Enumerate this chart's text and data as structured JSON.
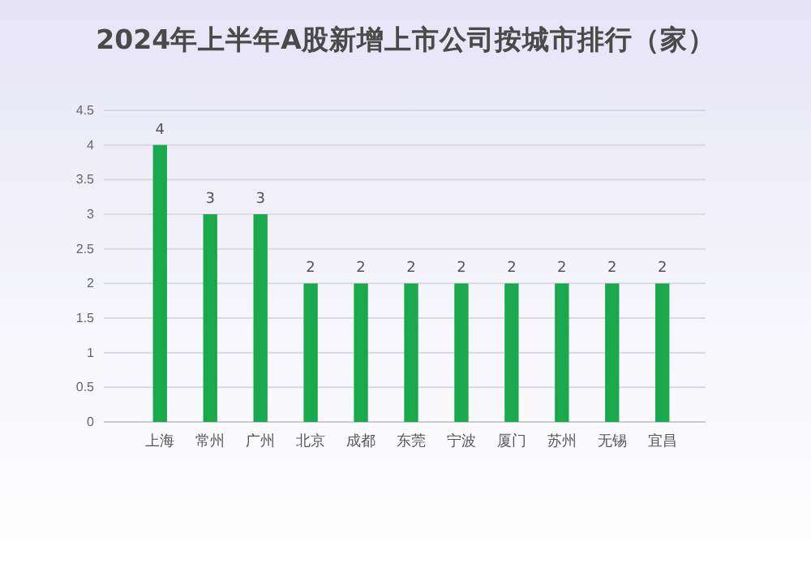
{
  "chart_data": {
    "type": "bar",
    "title": "2024年上半年A股新增上市公司按城市排行（家）",
    "categories": [
      "上海",
      "常州",
      "广州",
      "北京",
      "成都",
      "东莞",
      "宁波",
      "厦门",
      "苏州",
      "无锡",
      "宜昌"
    ],
    "values": [
      4,
      3,
      3,
      2,
      2,
      2,
      2,
      2,
      2,
      2,
      2
    ],
    "color": "#1aa84c",
    "ylim": [
      0,
      4.5
    ],
    "yticks": [
      0,
      0.5,
      1,
      1.5,
      2,
      2.5,
      3,
      3.5,
      4,
      4.5
    ],
    "grid": "y",
    "data_labels": true
  }
}
